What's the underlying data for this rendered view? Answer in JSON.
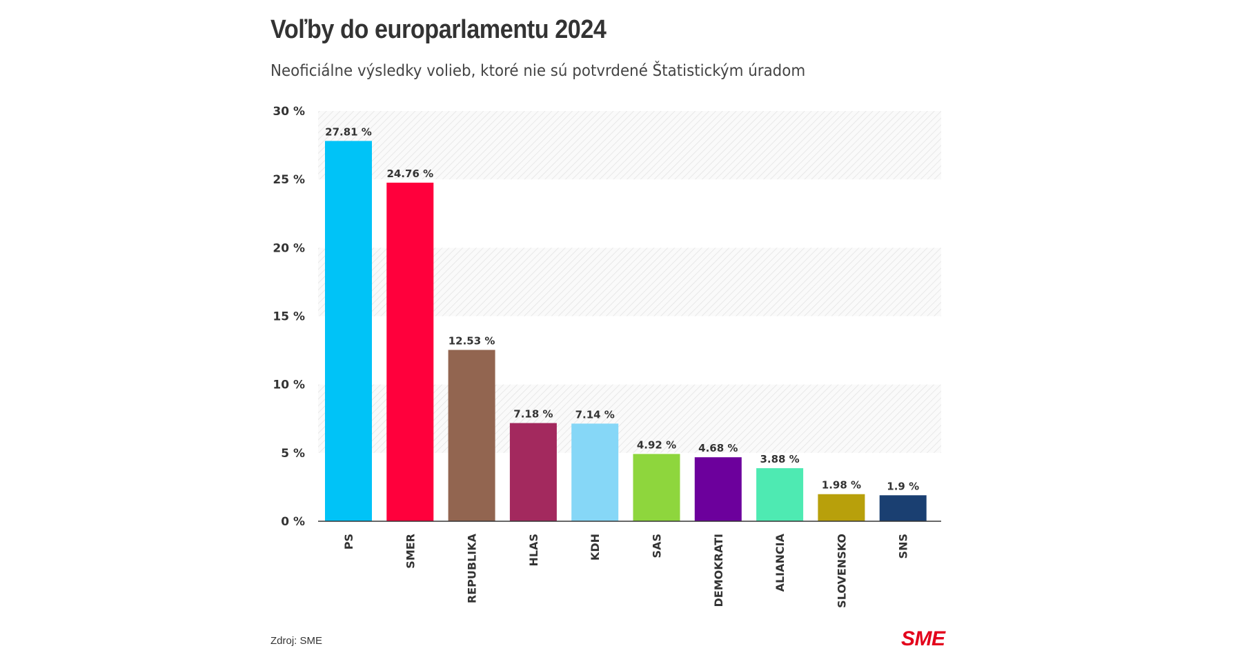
{
  "header": {
    "title": "Voľby do europarlamentu 2024",
    "subtitle": "Neoficiálne výsledky volieb, ktoré nie sú potvrdené Štatistickým úradom"
  },
  "footer": {
    "source": "Zdroj: SME",
    "logo": "SME"
  },
  "chart_data": {
    "type": "bar",
    "title": "Voľby do europarlamentu 2024",
    "subtitle": "Neoficiálne výsledky volieb, ktoré nie sú potvrdené Štatistickým úradom",
    "categories": [
      "PS",
      "SMER",
      "REPUBLIKA",
      "HLAS",
      "KDH",
      "SAS",
      "DEMOKRATI",
      "ALIANCIA",
      "SLOVENSKO",
      "SNS"
    ],
    "values": [
      27.81,
      24.76,
      12.53,
      7.18,
      7.14,
      4.92,
      4.68,
      3.88,
      1.98,
      1.9
    ],
    "value_labels": [
      "27.81 %",
      "24.76 %",
      "12.53 %",
      "7.18 %",
      "7.14 %",
      "4.92 %",
      "4.68 %",
      "3.88 %",
      "1.98 %",
      "1.9 %"
    ],
    "colors": [
      "#00c3f7",
      "#ff003c",
      "#926550",
      "#a3295e",
      "#86d7f7",
      "#8ed63d",
      "#6c009c",
      "#4eeab2",
      "#b8a00b",
      "#1a3f71"
    ],
    "ylim": [
      0,
      30
    ],
    "yticks": [
      0,
      5,
      10,
      15,
      20,
      25,
      30
    ],
    "ytick_labels": [
      "0 %",
      "5 %",
      "10 %",
      "15 %",
      "20 %",
      "25 %",
      "30 %"
    ],
    "xlabel": "",
    "ylabel": "",
    "grid": true,
    "legend": "none"
  }
}
